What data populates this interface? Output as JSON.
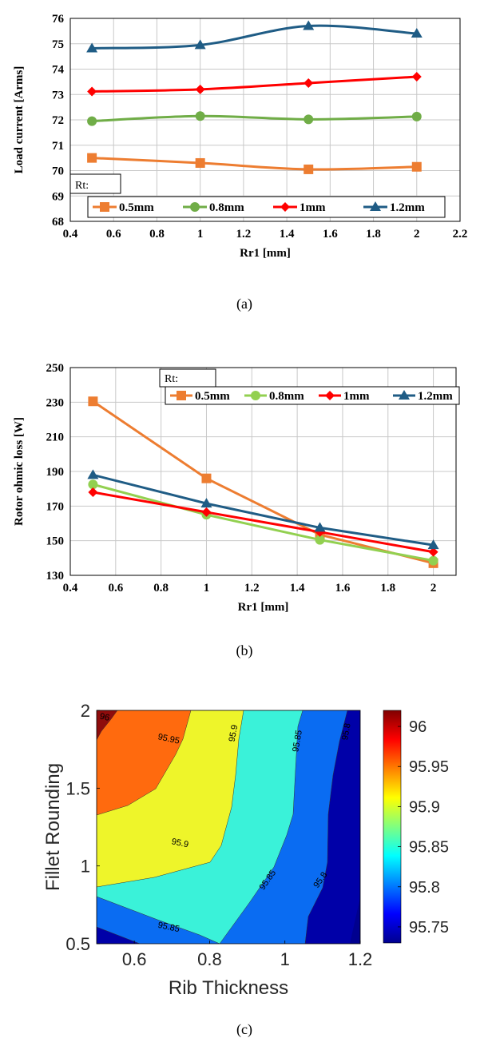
{
  "chart_data": [
    {
      "type": "line",
      "panel_label": "(a)",
      "xlabel": "Rr1 [mm]",
      "ylabel": "Load current [Arms]",
      "xlim": [
        0.4,
        2.2
      ],
      "ylim": [
        68,
        76
      ],
      "x_ticks": [
        0.4,
        0.6,
        0.8,
        1,
        1.2,
        1.4,
        1.6,
        1.8,
        2,
        2.2
      ],
      "y_ticks": [
        68,
        69,
        70,
        71,
        72,
        73,
        74,
        75,
        76
      ],
      "x_tick_labels": [
        "0.4",
        "0.6",
        "0.8",
        "1",
        "1.2",
        "1.4",
        "1.6",
        "1.8",
        "2",
        "2.2"
      ],
      "y_tick_labels": [
        "68",
        "69",
        "70",
        "71",
        "72",
        "73",
        "74",
        "75",
        "76"
      ],
      "grid": true,
      "legend_title": "Rt:",
      "legend_position": "bottom",
      "x": [
        0.5,
        1,
        1.5,
        2
      ],
      "series": [
        {
          "name": "0.5mm",
          "values": [
            70.5,
            70.3,
            70.05,
            70.15
          ],
          "color": "#ED7D31",
          "marker": "square"
        },
        {
          "name": "0.8mm",
          "values": [
            71.95,
            72.15,
            72.02,
            72.13
          ],
          "color": "#70AD47",
          "marker": "circle"
        },
        {
          "name": "1mm",
          "values": [
            73.12,
            73.2,
            73.45,
            73.7
          ],
          "color": "#FF0000",
          "marker": "diamond"
        },
        {
          "name": "1.2mm",
          "values": [
            74.82,
            74.95,
            75.7,
            75.4
          ],
          "color": "#1F5C85",
          "marker": "triangle"
        }
      ]
    },
    {
      "type": "line",
      "panel_label": "(b)",
      "xlabel": "Rr1 [mm]",
      "ylabel": "Rotor ohmic loss [W]",
      "xlim": [
        0.4,
        2.1
      ],
      "ylim": [
        130,
        250
      ],
      "x_ticks": [
        0.4,
        0.6,
        0.8,
        1,
        1.2,
        1.4,
        1.6,
        1.8,
        2
      ],
      "y_ticks": [
        130,
        150,
        170,
        190,
        210,
        230,
        250
      ],
      "x_tick_labels": [
        "0.4",
        "0.6",
        "0.8",
        "1",
        "1.2",
        "1.4",
        "1.6",
        "1.8",
        "2"
      ],
      "y_tick_labels": [
        "130",
        "150",
        "170",
        "190",
        "210",
        "230",
        "250"
      ],
      "grid": true,
      "legend_title": "Rt:",
      "legend_position": "top-right",
      "x": [
        0.5,
        1,
        1.5,
        2
      ],
      "series": [
        {
          "name": "0.5mm",
          "values": [
            230.5,
            186,
            153.5,
            137
          ],
          "color": "#ED7D31",
          "marker": "square"
        },
        {
          "name": "0.8mm",
          "values": [
            182.5,
            165,
            150.5,
            138.5
          ],
          "color": "#92D050",
          "marker": "circle"
        },
        {
          "name": "1mm",
          "values": [
            178,
            166.5,
            155,
            143.5
          ],
          "color": "#FF0000",
          "marker": "diamond"
        },
        {
          "name": "1.2mm",
          "values": [
            188,
            171.5,
            157.5,
            147.5
          ],
          "color": "#1F5C85",
          "marker": "triangle"
        }
      ]
    },
    {
      "type": "heatmap",
      "subtype": "filled-contour",
      "panel_label": "(c)",
      "xlabel": "Rib Thickness",
      "ylabel": "Fillet Rounding",
      "xlim": [
        0.5,
        1.2
      ],
      "ylim": [
        0.5,
        2
      ],
      "x_ticks": [
        0.6,
        0.8,
        1,
        1.2
      ],
      "y_ticks": [
        0.5,
        1,
        1.5,
        2
      ],
      "x_tick_labels": [
        "0.6",
        "0.8",
        "1",
        "1.2"
      ],
      "y_tick_labels": [
        "0.5",
        "1",
        "1.5",
        "2"
      ],
      "levels": [
        95.75,
        95.8,
        95.85,
        95.9,
        95.95,
        96
      ],
      "colorbar": {
        "range": [
          95.73,
          96.02
        ],
        "ticks": [
          95.75,
          95.8,
          95.85,
          95.9,
          95.95,
          96
        ],
        "tick_labels": [
          "95.75",
          "95.8",
          "95.85",
          "95.9",
          "95.95",
          "96"
        ]
      },
      "contour_labels": [
        {
          "text": "96",
          "x": 0.52,
          "y": 1.94
        },
        {
          "text": "95.95",
          "x": 0.69,
          "y": 1.8
        },
        {
          "text": "95.9",
          "x": 0.87,
          "y": 1.85
        },
        {
          "text": "95.85",
          "x": 1.04,
          "y": 1.8
        },
        {
          "text": "95.8",
          "x": 1.17,
          "y": 1.86
        },
        {
          "text": "95.9",
          "x": 0.72,
          "y": 1.13
        },
        {
          "text": "95.85",
          "x": 0.96,
          "y": 0.9
        },
        {
          "text": "95.8",
          "x": 1.1,
          "y": 0.9
        },
        {
          "text": "95.85",
          "x": 0.69,
          "y": 0.59
        }
      ]
    }
  ]
}
